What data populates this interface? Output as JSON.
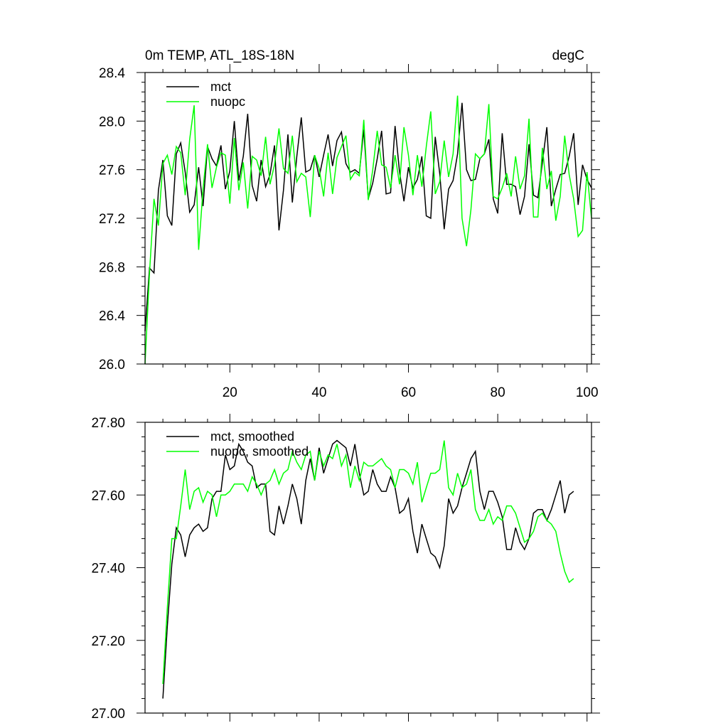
{
  "chart_data": [
    {
      "type": "line",
      "title": "0m TEMP, ATL_18S-18N",
      "units": "degC",
      "xlim": [
        1,
        101
      ],
      "ylim": [
        26.0,
        28.4
      ],
      "xticks": [
        20,
        40,
        60,
        80,
        100
      ],
      "xtick_labels": [
        "20",
        "40",
        "60",
        "80",
        "100"
      ],
      "yticks": [
        26.0,
        26.4,
        26.8,
        27.2,
        27.6,
        28.0,
        28.4
      ],
      "ytick_labels": [
        "26.0",
        "26.4",
        "26.8",
        "27.2",
        "27.6",
        "28.0",
        "28.4"
      ],
      "legend": "top-left",
      "x": [
        1,
        2,
        3,
        4,
        5,
        6,
        7,
        8,
        9,
        10,
        11,
        12,
        13,
        14,
        15,
        16,
        17,
        18,
        19,
        20,
        21,
        22,
        23,
        24,
        25,
        26,
        27,
        28,
        29,
        30,
        31,
        32,
        33,
        34,
        35,
        36,
        37,
        38,
        39,
        40,
        41,
        42,
        43,
        44,
        45,
        46,
        47,
        48,
        49,
        50,
        51,
        52,
        53,
        54,
        55,
        56,
        57,
        58,
        59,
        60,
        61,
        62,
        63,
        64,
        65,
        66,
        67,
        68,
        69,
        70,
        71,
        72,
        73,
        74,
        75,
        76,
        77,
        78,
        79,
        80,
        81,
        82,
        83,
        84,
        85,
        86,
        87,
        88,
        89,
        90,
        91,
        92,
        93,
        94,
        95,
        96,
        97,
        98,
        99,
        100,
        101
      ],
      "series": [
        {
          "name": "mct",
          "color": "#000000",
          "values": [
            26.27,
            26.79,
            26.75,
            27.43,
            27.68,
            27.22,
            27.14,
            27.73,
            27.82,
            27.58,
            27.25,
            27.31,
            27.62,
            27.3,
            27.79,
            27.69,
            27.63,
            27.8,
            27.44,
            27.59,
            28.0,
            27.51,
            27.71,
            28.06,
            27.47,
            27.34,
            27.68,
            27.46,
            27.56,
            27.8,
            27.1,
            27.43,
            27.89,
            27.33,
            27.71,
            28.03,
            27.58,
            27.6,
            27.72,
            27.54,
            27.72,
            27.89,
            27.63,
            27.84,
            27.91,
            27.65,
            27.58,
            27.6,
            27.57,
            27.93,
            27.36,
            27.49,
            27.69,
            27.92,
            27.4,
            27.41,
            27.96,
            27.58,
            27.34,
            27.62,
            27.45,
            27.52,
            27.71,
            27.22,
            27.2,
            27.87,
            27.57,
            27.11,
            27.44,
            27.51,
            27.73,
            28.15,
            27.6,
            27.51,
            27.52,
            27.69,
            27.73,
            27.85,
            27.36,
            27.24,
            27.9,
            27.48,
            27.48,
            27.46,
            27.23,
            27.38,
            27.81,
            27.39,
            27.37,
            27.66,
            27.95,
            27.3,
            27.44,
            27.56,
            27.57,
            27.71,
            27.9,
            27.31,
            27.64,
            27.52,
            27.45
          ]
        },
        {
          "name": "nuopc",
          "color": "#00ff00",
          "values": [
            26.0,
            26.75,
            27.36,
            27.14,
            27.65,
            27.72,
            27.56,
            27.79,
            27.74,
            27.39,
            27.85,
            28.13,
            26.94,
            27.44,
            27.81,
            27.45,
            27.62,
            27.74,
            27.72,
            27.32,
            27.86,
            27.43,
            27.66,
            27.28,
            27.71,
            27.68,
            27.55,
            27.87,
            27.48,
            27.64,
            27.94,
            27.61,
            27.57,
            27.88,
            27.5,
            27.57,
            27.54,
            27.21,
            27.72,
            27.61,
            27.38,
            27.74,
            27.4,
            27.7,
            27.79,
            27.88,
            27.52,
            27.58,
            27.55,
            28.01,
            27.35,
            27.6,
            27.92,
            27.64,
            27.62,
            27.45,
            27.72,
            27.48,
            27.95,
            27.72,
            27.39,
            27.72,
            27.46,
            27.79,
            28.08,
            27.4,
            27.5,
            27.84,
            27.54,
            27.73,
            28.21,
            27.2,
            26.97,
            27.27,
            27.73,
            27.69,
            27.73,
            28.14,
            27.38,
            27.36,
            27.45,
            27.57,
            27.38,
            27.71,
            27.44,
            27.55,
            28.02,
            27.21,
            27.21,
            27.78,
            27.44,
            27.59,
            27.18,
            27.38,
            27.88,
            27.56,
            27.36,
            27.05,
            27.1,
            27.58,
            27.2
          ]
        }
      ]
    },
    {
      "type": "line",
      "xlim": [
        1,
        101
      ],
      "ylim": [
        27.0,
        27.8
      ],
      "xticks": [
        20,
        40,
        60,
        80,
        100
      ],
      "yticks": [
        27.0,
        27.2,
        27.4,
        27.6,
        27.8
      ],
      "ytick_labels": [
        "27.00",
        "27.20",
        "27.40",
        "27.60",
        "27.80"
      ],
      "legend": "top-left",
      "x": [
        5,
        6,
        7,
        8,
        9,
        10,
        11,
        12,
        13,
        14,
        15,
        16,
        17,
        18,
        19,
        20,
        21,
        22,
        23,
        24,
        25,
        26,
        27,
        28,
        29,
        30,
        31,
        32,
        33,
        34,
        35,
        36,
        37,
        38,
        39,
        40,
        41,
        42,
        43,
        44,
        45,
        46,
        47,
        48,
        49,
        50,
        51,
        52,
        53,
        54,
        55,
        56,
        57,
        58,
        59,
        60,
        61,
        62,
        63,
        64,
        65,
        66,
        67,
        68,
        69,
        70,
        71,
        72,
        73,
        74,
        75,
        76,
        77,
        78,
        79,
        80,
        81,
        82,
        83,
        84,
        85,
        86,
        87,
        88,
        89,
        90,
        91,
        92,
        93,
        94,
        95,
        96,
        97
      ],
      "series": [
        {
          "name": "mct, smoothed",
          "color": "#000000",
          "values": [
            27.04,
            27.24,
            27.41,
            27.51,
            27.49,
            27.43,
            27.49,
            27.51,
            27.52,
            27.5,
            27.51,
            27.59,
            27.61,
            27.61,
            27.71,
            27.67,
            27.68,
            27.74,
            27.72,
            27.69,
            27.68,
            27.62,
            27.63,
            27.63,
            27.5,
            27.49,
            27.57,
            27.52,
            27.57,
            27.63,
            27.59,
            27.52,
            27.64,
            27.7,
            27.64,
            27.73,
            27.66,
            27.7,
            27.74,
            27.75,
            27.74,
            27.73,
            27.68,
            27.74,
            27.66,
            27.6,
            27.61,
            27.67,
            27.63,
            27.61,
            27.61,
            27.65,
            27.62,
            27.55,
            27.56,
            27.59,
            27.5,
            27.44,
            27.52,
            27.48,
            27.44,
            27.43,
            27.4,
            27.46,
            27.59,
            27.55,
            27.57,
            27.62,
            27.66,
            27.7,
            27.72,
            27.61,
            27.56,
            27.61,
            27.61,
            27.58,
            27.54,
            27.45,
            27.45,
            27.51,
            27.47,
            27.45,
            27.48,
            27.55,
            27.56,
            27.56,
            27.53,
            27.56,
            27.6,
            27.64,
            27.55,
            27.6,
            27.61
          ]
        },
        {
          "name": "nuopc, smoothed",
          "color": "#00ff00",
          "values": [
            27.08,
            27.29,
            27.48,
            27.48,
            27.57,
            27.67,
            27.56,
            27.61,
            27.62,
            27.58,
            27.61,
            27.6,
            27.54,
            27.6,
            27.6,
            27.61,
            27.63,
            27.63,
            27.63,
            27.61,
            27.65,
            27.63,
            27.6,
            27.63,
            27.64,
            27.67,
            27.63,
            27.66,
            27.67,
            27.72,
            27.69,
            27.67,
            27.71,
            27.72,
            27.64,
            27.72,
            27.68,
            27.71,
            27.7,
            27.74,
            27.68,
            27.71,
            27.62,
            27.68,
            27.64,
            27.69,
            27.68,
            27.68,
            27.69,
            27.7,
            27.68,
            27.67,
            27.62,
            27.67,
            27.67,
            27.66,
            27.63,
            27.69,
            27.58,
            27.62,
            27.66,
            27.66,
            27.67,
            27.75,
            27.62,
            27.6,
            27.66,
            27.62,
            27.63,
            27.67,
            27.56,
            27.53,
            27.53,
            27.56,
            27.52,
            27.54,
            27.53,
            27.57,
            27.57,
            27.55,
            27.51,
            27.47,
            27.48,
            27.5,
            27.54,
            27.55,
            27.53,
            27.52,
            27.5,
            27.44,
            27.39,
            27.36,
            27.37
          ]
        }
      ]
    }
  ]
}
